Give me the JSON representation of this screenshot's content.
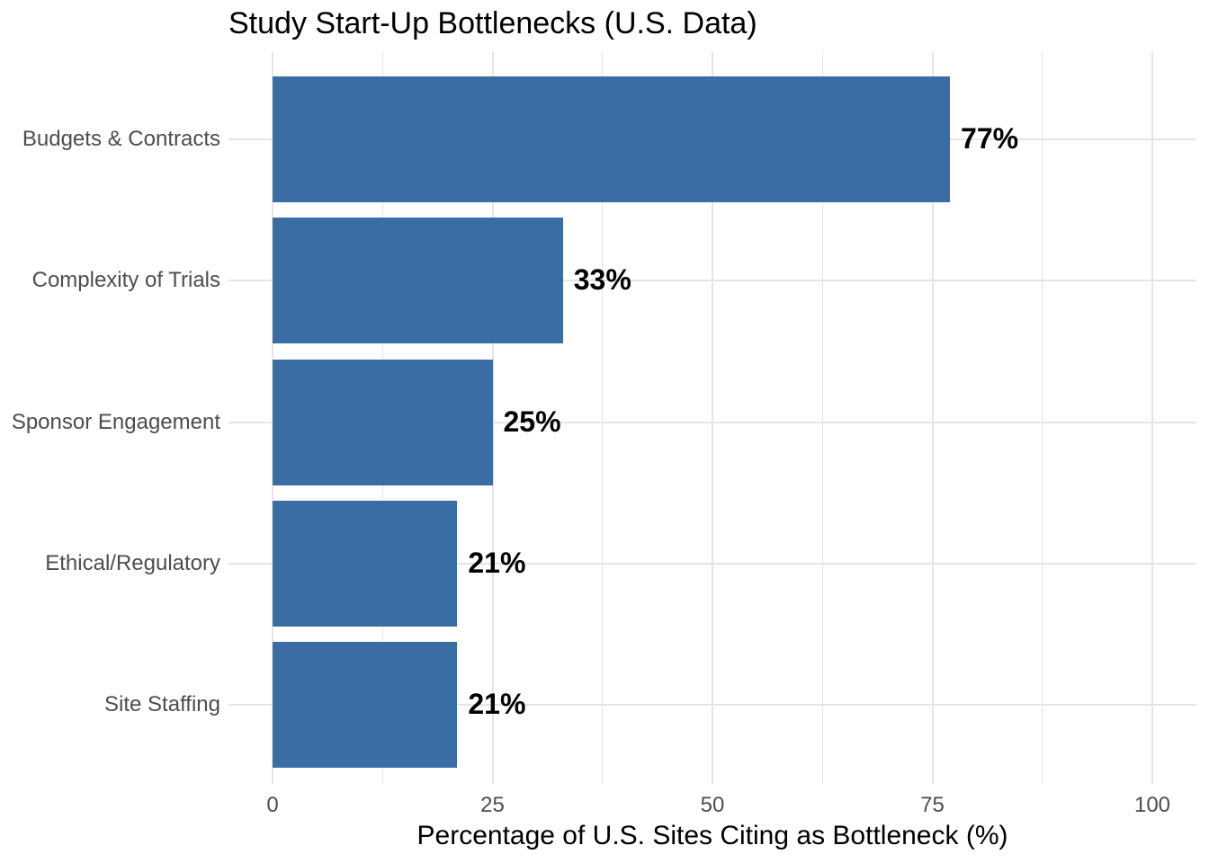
{
  "chart_data": {
    "type": "bar",
    "orientation": "horizontal",
    "title": "Study Start-Up Bottlenecks (U.S. Data)",
    "xlabel": "Percentage of U.S. Sites Citing as Bottleneck (%)",
    "ylabel": "",
    "categories": [
      "Budgets & Contracts",
      "Complexity of Trials",
      "Sponsor Engagement",
      "Ethical/Regulatory",
      "Site Staffing"
    ],
    "values": [
      77,
      33,
      25,
      21,
      21
    ],
    "bar_labels": [
      "77%",
      "33%",
      "25%",
      "21%",
      "21%"
    ],
    "xlim": [
      0,
      105
    ],
    "x_ticks": [
      0,
      25,
      50,
      75,
      100
    ],
    "x_tick_labels": [
      "0",
      "25",
      "50",
      "75",
      "100"
    ],
    "x_minor_ticks": [
      12.5,
      37.5,
      62.5,
      87.5
    ],
    "grid": true,
    "legend": "none",
    "bar_color": "#3A6DA4",
    "grid_color": "#E5E5E5",
    "axis_text_color": "#4D4D4D",
    "label_color": "#000000",
    "background": "#FFFFFF"
  }
}
